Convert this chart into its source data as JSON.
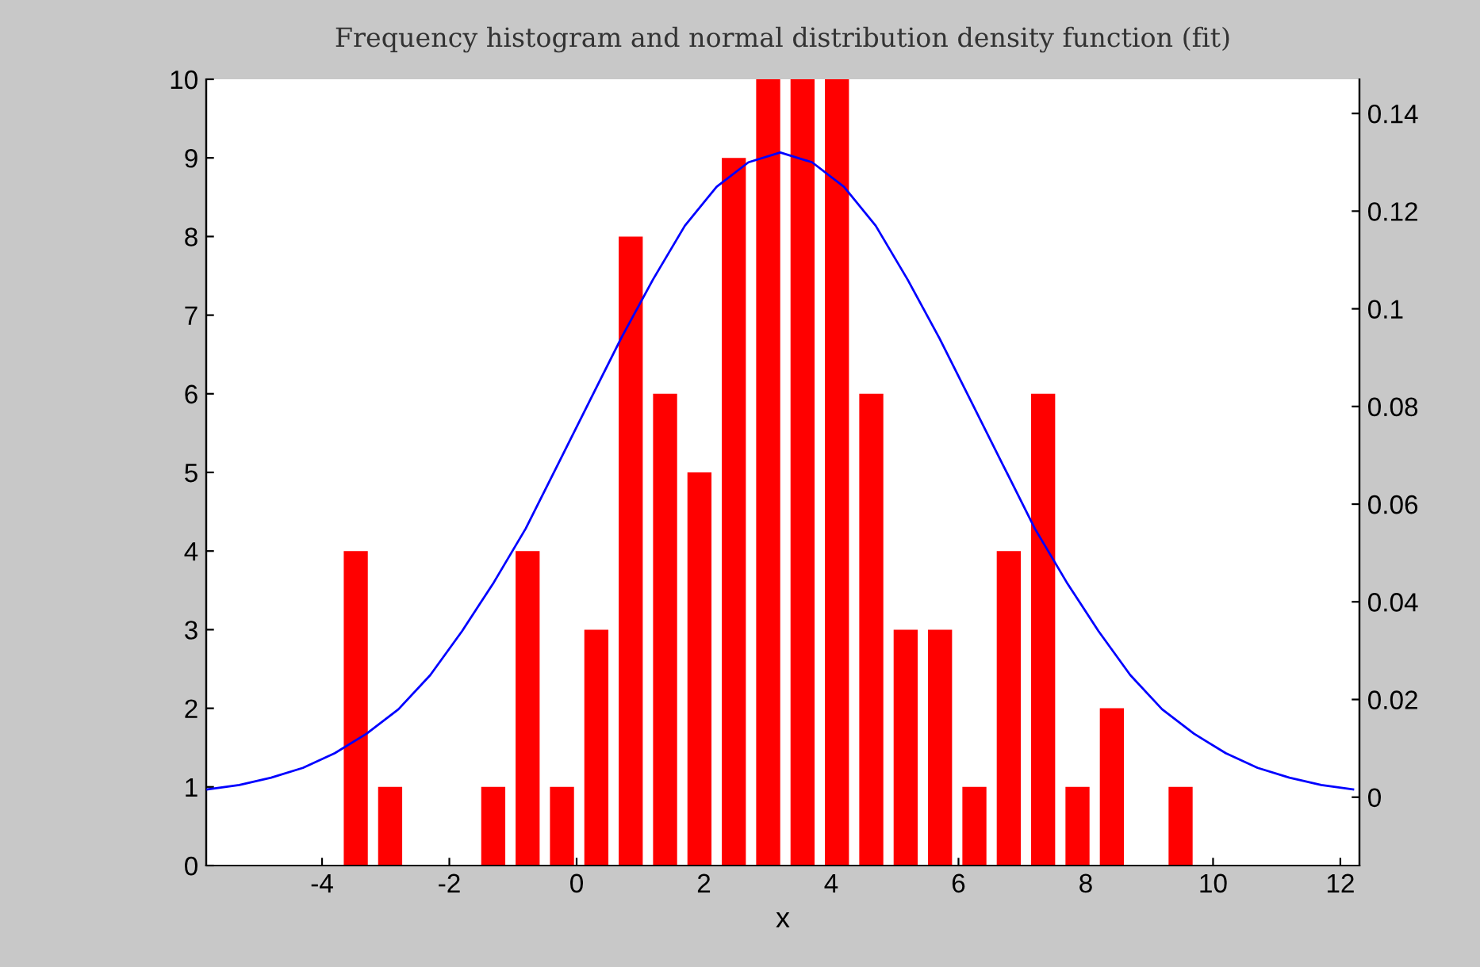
{
  "chart_data": {
    "type": "histogram",
    "title": "Frequency histogram and normal distribution density function (fit)",
    "xlabel": "x",
    "series": [
      {
        "color": "#ff0000",
        "bins": [
          -3.74,
          -3.2,
          -2.66,
          -2.12,
          -1.58,
          -1.04,
          -0.5,
          0.04,
          0.58,
          1.12,
          1.66,
          2.2,
          2.74,
          3.28,
          3.82,
          4.36,
          4.9,
          5.44,
          5.98,
          6.52,
          7.06,
          7.6,
          8.14,
          8.68,
          9.22,
          9.76
        ],
        "values": [
          4,
          1,
          0,
          0,
          1,
          4,
          1,
          3,
          8,
          6,
          5,
          9,
          10,
          10,
          10,
          6,
          3,
          3,
          1,
          4,
          6,
          1,
          2,
          0,
          1
        ]
      },
      {
        "type": "line",
        "axis": "y2",
        "color": "#0000ff",
        "x": [
          -5.8,
          -5.3,
          -4.8,
          -4.3,
          -3.8,
          -3.3,
          -2.8,
          -2.3,
          -1.8,
          -1.3,
          -0.8,
          -0.3,
          0.2,
          0.7,
          1.2,
          1.7,
          2.2,
          2.7,
          3.2,
          3.7,
          4.2,
          4.7,
          5.2,
          5.7,
          6.2,
          6.7,
          7.2,
          7.7,
          8.2,
          8.7,
          9.2,
          9.7,
          10.2,
          10.7,
          11.2,
          11.7,
          12.2
        ],
        "values": [
          0.0016,
          0.0025,
          0.004,
          0.006,
          0.009,
          0.013,
          0.018,
          0.025,
          0.034,
          0.044,
          0.055,
          0.068,
          0.081,
          0.094,
          0.106,
          0.117,
          0.125,
          0.13,
          0.132,
          0.13,
          0.125,
          0.117,
          0.106,
          0.094,
          0.081,
          0.068,
          0.055,
          0.044,
          0.034,
          0.025,
          0.018,
          0.013,
          0.009,
          0.006,
          0.004,
          0.0025,
          0.0016
        ]
      }
    ],
    "xlim": [
      -5.82,
      12.3
    ],
    "xticks": [
      -4,
      -2,
      0,
      2,
      4,
      6,
      8,
      10,
      12
    ],
    "ylim": [
      0,
      10
    ],
    "yticks": [
      0,
      1,
      2,
      3,
      4,
      5,
      6,
      7,
      8,
      9,
      10
    ],
    "y2lim": [
      -0.014,
      0.147
    ],
    "y2ticks": [
      0,
      0.02,
      0.04,
      0.06,
      0.08,
      0.1,
      0.12,
      0.14
    ]
  }
}
